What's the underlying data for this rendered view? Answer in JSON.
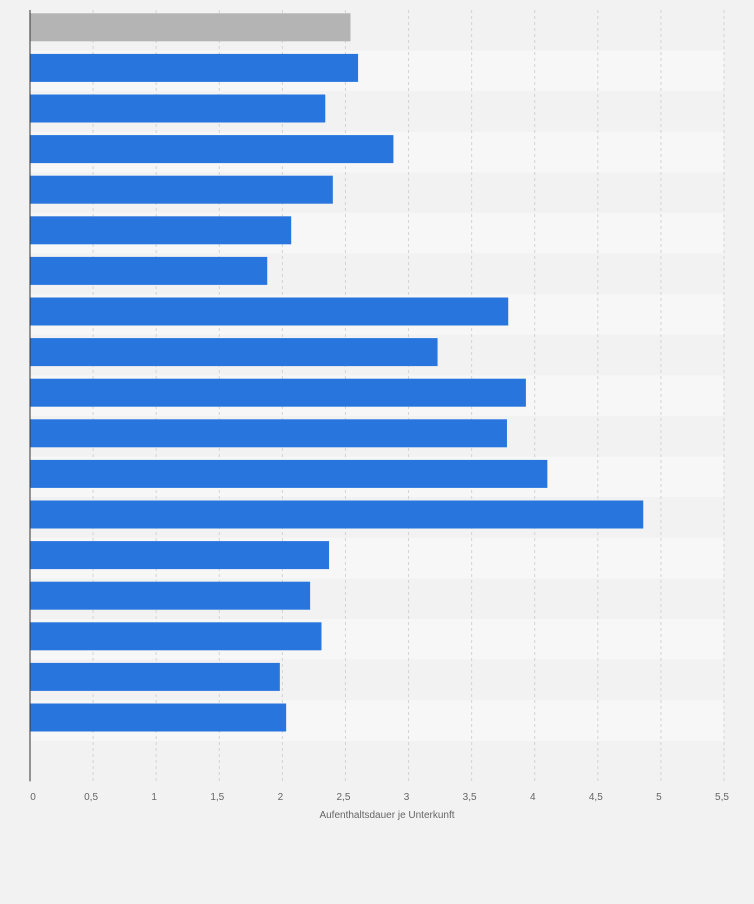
{
  "chart_data": {
    "type": "bar",
    "orientation": "horizontal",
    "title": "",
    "xlabel": "Aufenthaltsdauer je Unterkunft",
    "ylabel": "",
    "xlim": [
      0,
      5.5
    ],
    "ticks": [
      {
        "value": 0,
        "label": "0"
      },
      {
        "value": 0.5,
        "label": "0,5"
      },
      {
        "value": 1,
        "label": "1"
      },
      {
        "value": 1.5,
        "label": "1,5"
      },
      {
        "value": 2,
        "label": "2"
      },
      {
        "value": 2.5,
        "label": "2,5"
      },
      {
        "value": 3,
        "label": "3"
      },
      {
        "value": 3.5,
        "label": "3,5"
      },
      {
        "value": 4,
        "label": "4"
      },
      {
        "value": 4.5,
        "label": "4,5"
      },
      {
        "value": 5,
        "label": "5"
      },
      {
        "value": 5.5,
        "label": "5,5"
      }
    ],
    "grid": true,
    "values": [
      2.54,
      2.6,
      2.34,
      2.88,
      2.4,
      2.07,
      1.88,
      3.79,
      3.23,
      3.93,
      3.78,
      4.1,
      4.86,
      2.37,
      2.22,
      2.31,
      1.98,
      2.03
    ],
    "highlight_index": 0,
    "colors": {
      "bar": "#2876dd",
      "highlight_bar": "#b4b4b4",
      "band_light": "#f7f7f8",
      "band_dark": "#f2f2f3",
      "grid": "#d4d4d4",
      "axis": "#333333",
      "text": "#666666"
    }
  }
}
